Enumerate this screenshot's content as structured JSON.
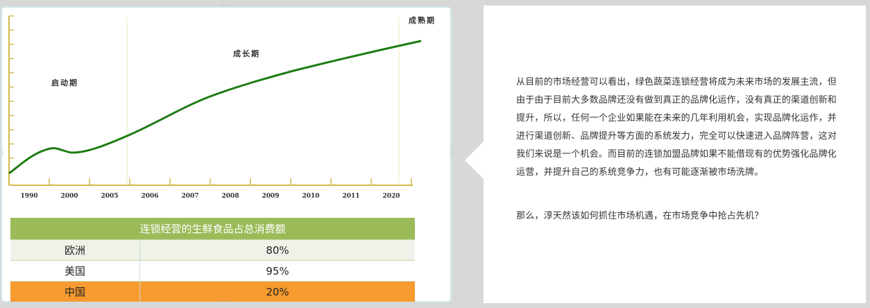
{
  "chart": {
    "stages": [
      "启动期",
      "成长期",
      "成熟期"
    ],
    "x_labels": [
      "1990",
      "2000",
      "2005",
      "2006",
      "2007",
      "2008",
      "2009",
      "2010",
      "2011",
      "2020"
    ],
    "line_color": "#1e7d12",
    "axis_color": "#d4b94a"
  },
  "table": {
    "title": "连锁经营的生鲜食品占总消费额",
    "rows": [
      {
        "region": "欧洲",
        "value": "80%"
      },
      {
        "region": "美国",
        "value": "95%"
      },
      {
        "region": "中国",
        "value": "20%"
      }
    ],
    "colors": {
      "header": "#9bbb59",
      "highlight": "#f79a30"
    }
  },
  "article": {
    "paragraphs": [
      "从目前的市场经营可以看出，绿色蔬菜连锁经营将成为未来市场的发展主流，但由于由于目前大多数品牌还没有做到真正的品牌化运作，没有真正的渠道创新和提升，所以，任何一个企业如果能在未来的几年利用机会，实现品牌化运作，并进行渠道创新、品牌提升等方面的系统发力，完全可以快速进入品牌阵营，这对我们来说是一个机会。而目前的连锁加盟品牌如果不能借现有的优势强化品牌化运营，并提升自己的系统竞争力，也有可能逐渐被市场洗牌。",
      "那么，淳天然该如何抓住市场机遇，在市场竞争中抢占先机？"
    ]
  }
}
